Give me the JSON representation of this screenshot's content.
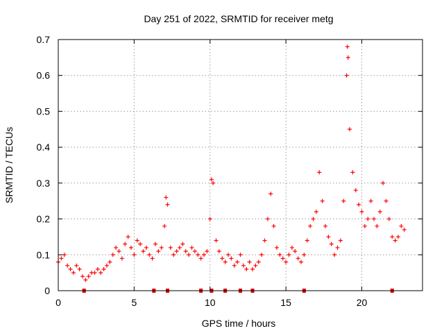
{
  "chart_data": {
    "type": "scatter",
    "title": "Day 251 of 2022, SRMTID for receiver metg",
    "xlabel": "GPS time / hours",
    "ylabel": "SRMTID / TECUs",
    "xlim": [
      0,
      24
    ],
    "ylim": [
      0,
      0.7
    ],
    "x_ticks": [
      "0",
      "5",
      "10",
      "15",
      "20"
    ],
    "y_ticks": [
      "0",
      "0.1",
      "0.2",
      "0.3",
      "0.4",
      "0.5",
      "0.6",
      "0.7"
    ],
    "grid": true,
    "marker": "+",
    "color": "#ff0000",
    "series": [
      {
        "name": "SRMTID",
        "x": [
          0.0,
          0.2,
          0.4,
          0.6,
          0.8,
          1.0,
          1.2,
          1.4,
          1.6,
          1.8,
          2.0,
          2.2,
          2.4,
          2.6,
          2.8,
          3.0,
          3.2,
          3.4,
          3.6,
          3.8,
          4.0,
          4.2,
          4.4,
          4.6,
          4.8,
          5.0,
          5.2,
          5.4,
          5.6,
          5.8,
          6.0,
          6.2,
          6.4,
          6.6,
          6.8,
          7.0,
          7.1,
          7.2,
          7.4,
          7.6,
          7.8,
          8.0,
          8.2,
          8.4,
          8.6,
          8.8,
          9.0,
          9.2,
          9.4,
          9.6,
          9.8,
          10.0,
          10.1,
          10.2,
          10.4,
          10.6,
          10.8,
          11.0,
          11.2,
          11.4,
          11.6,
          11.8,
          12.0,
          12.2,
          12.4,
          12.6,
          12.8,
          13.0,
          13.2,
          13.4,
          13.6,
          13.8,
          14.0,
          14.2,
          14.4,
          14.6,
          14.8,
          15.0,
          15.2,
          15.4,
          15.6,
          15.8,
          16.0,
          16.2,
          16.4,
          16.6,
          16.8,
          17.0,
          17.2,
          17.4,
          17.6,
          17.8,
          18.0,
          18.2,
          18.4,
          18.6,
          18.8,
          19.0,
          19.05,
          19.1,
          19.2,
          19.4,
          19.6,
          19.8,
          20.0,
          20.2,
          20.4,
          20.6,
          20.8,
          21.0,
          21.2,
          21.4,
          21.6,
          21.8,
          22.0,
          22.2,
          22.4,
          22.6,
          22.8
        ],
        "y": [
          0.08,
          0.09,
          0.1,
          0.07,
          0.06,
          0.05,
          0.07,
          0.06,
          0.04,
          0.03,
          0.04,
          0.05,
          0.05,
          0.06,
          0.05,
          0.06,
          0.07,
          0.08,
          0.1,
          0.12,
          0.11,
          0.09,
          0.13,
          0.15,
          0.12,
          0.1,
          0.14,
          0.13,
          0.11,
          0.12,
          0.1,
          0.09,
          0.13,
          0.11,
          0.12,
          0.18,
          0.26,
          0.24,
          0.12,
          0.1,
          0.11,
          0.12,
          0.13,
          0.11,
          0.1,
          0.12,
          0.11,
          0.1,
          0.09,
          0.1,
          0.11,
          0.2,
          0.31,
          0.3,
          0.14,
          0.11,
          0.09,
          0.08,
          0.1,
          0.09,
          0.07,
          0.08,
          0.1,
          0.07,
          0.06,
          0.08,
          0.06,
          0.07,
          0.08,
          0.1,
          0.14,
          0.2,
          0.27,
          0.18,
          0.12,
          0.1,
          0.09,
          0.08,
          0.1,
          0.12,
          0.11,
          0.09,
          0.08,
          0.1,
          0.14,
          0.18,
          0.2,
          0.22,
          0.33,
          0.25,
          0.18,
          0.15,
          0.13,
          0.1,
          0.12,
          0.14,
          0.25,
          0.6,
          0.68,
          0.65,
          0.45,
          0.33,
          0.28,
          0.24,
          0.22,
          0.18,
          0.2,
          0.25,
          0.2,
          0.18,
          0.22,
          0.3,
          0.25,
          0.2,
          0.15,
          0.14,
          0.15,
          0.18,
          0.17
        ]
      }
    ],
    "data_gaps_x": [
      1.7,
      6.3,
      7.2,
      9.4,
      10.1,
      11.0,
      12.0,
      12.8,
      16.2,
      22.0
    ]
  }
}
